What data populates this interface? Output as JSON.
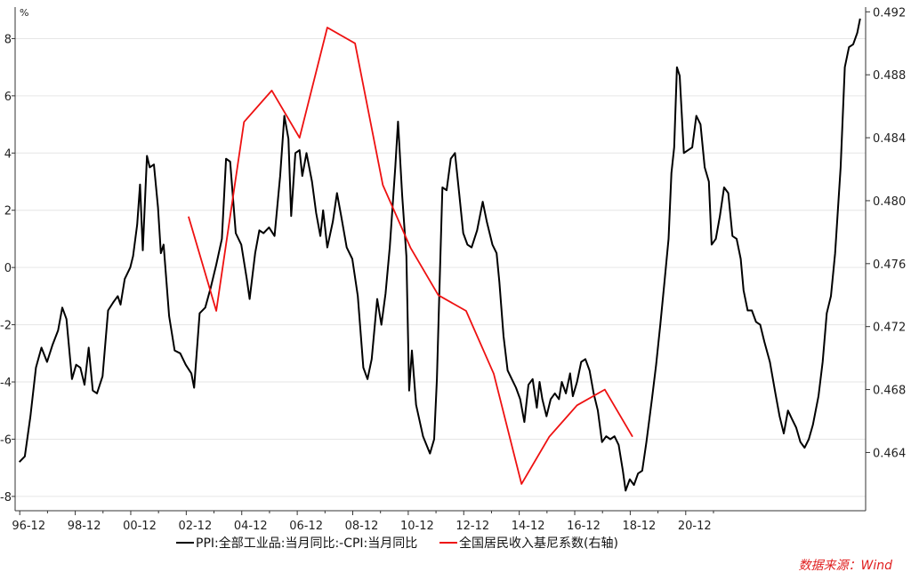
{
  "chart_data": {
    "type": "line",
    "left_axis_unit": "%",
    "x_ticks": [
      "96-12",
      "98-12",
      "00-12",
      "02-12",
      "04-12",
      "06-12",
      "08-12",
      "10-12",
      "12-12",
      "14-12",
      "16-12",
      "18-12",
      "20-12"
    ],
    "y_left": {
      "lim": [
        -8.5,
        9.1
      ],
      "ticks": [
        -8,
        -6,
        -4,
        -2,
        0,
        2,
        4,
        6,
        8
      ],
      "tick_labels": [
        "-8",
        "-6",
        "-4",
        "-2",
        "0",
        "2",
        "4",
        "6",
        "8"
      ]
    },
    "y_right": {
      "lim": [
        0.4603,
        0.4923
      ],
      "ticks": [
        0.464,
        0.468,
        0.472,
        0.476,
        0.48,
        0.484,
        0.488,
        0.492
      ],
      "tick_labels": [
        "0.464",
        "0.468",
        "0.472",
        "0.476",
        "0.480",
        "0.484",
        "0.488",
        "0.492"
      ]
    },
    "series": [
      {
        "name": "PPI:全部工业品:当月同比:-CPI:当月同比",
        "color": "#000000",
        "axis": "left",
        "points": [
          [
            1996.9,
            -6.8
          ],
          [
            1997.1,
            -6.6
          ],
          [
            1997.3,
            -5.2
          ],
          [
            1997.5,
            -3.5
          ],
          [
            1997.7,
            -2.8
          ],
          [
            1997.9,
            -3.3
          ],
          [
            1998.1,
            -2.7
          ],
          [
            1998.3,
            -2.2
          ],
          [
            1998.45,
            -1.4
          ],
          [
            1998.6,
            -1.8
          ],
          [
            1998.8,
            -3.9
          ],
          [
            1998.95,
            -3.4
          ],
          [
            1999.1,
            -3.5
          ],
          [
            1999.25,
            -4.1
          ],
          [
            1999.4,
            -2.8
          ],
          [
            1999.55,
            -4.3
          ],
          [
            1999.7,
            -4.4
          ],
          [
            1999.9,
            -3.8
          ],
          [
            2000.1,
            -1.5
          ],
          [
            2000.3,
            -1.2
          ],
          [
            2000.45,
            -1.0
          ],
          [
            2000.55,
            -1.3
          ],
          [
            2000.7,
            -0.4
          ],
          [
            2000.9,
            0.0
          ],
          [
            2001.0,
            0.4
          ],
          [
            2001.15,
            1.5
          ],
          [
            2001.25,
            2.9
          ],
          [
            2001.35,
            0.6
          ],
          [
            2001.5,
            3.9
          ],
          [
            2001.6,
            3.5
          ],
          [
            2001.75,
            3.6
          ],
          [
            2001.9,
            2.1
          ],
          [
            2002.0,
            0.5
          ],
          [
            2002.1,
            0.8
          ],
          [
            2002.3,
            -1.7
          ],
          [
            2002.5,
            -2.9
          ],
          [
            2002.7,
            -3.0
          ],
          [
            2002.9,
            -3.4
          ],
          [
            2003.1,
            -3.7
          ],
          [
            2003.2,
            -4.2
          ],
          [
            2003.4,
            -1.6
          ],
          [
            2003.6,
            -1.4
          ],
          [
            2003.8,
            -0.7
          ],
          [
            2004.0,
            0.1
          ],
          [
            2004.2,
            1.0
          ],
          [
            2004.35,
            3.8
          ],
          [
            2004.5,
            3.7
          ],
          [
            2004.7,
            1.2
          ],
          [
            2004.9,
            0.8
          ],
          [
            2005.1,
            -0.4
          ],
          [
            2005.2,
            -1.1
          ],
          [
            2005.4,
            0.5
          ],
          [
            2005.55,
            1.3
          ],
          [
            2005.7,
            1.2
          ],
          [
            2005.9,
            1.4
          ],
          [
            2006.1,
            1.1
          ],
          [
            2006.3,
            3.2
          ],
          [
            2006.45,
            5.3
          ],
          [
            2006.6,
            4.5
          ],
          [
            2006.7,
            1.8
          ],
          [
            2006.85,
            4.0
          ],
          [
            2007.0,
            4.1
          ],
          [
            2007.1,
            3.2
          ],
          [
            2007.25,
            4.0
          ],
          [
            2007.45,
            3.0
          ],
          [
            2007.6,
            1.9
          ],
          [
            2007.75,
            1.1
          ],
          [
            2007.85,
            2.0
          ],
          [
            2008.0,
            0.7
          ],
          [
            2008.2,
            1.6
          ],
          [
            2008.35,
            2.6
          ],
          [
            2008.5,
            1.8
          ],
          [
            2008.7,
            0.7
          ],
          [
            2008.9,
            0.3
          ],
          [
            2009.1,
            -1.0
          ],
          [
            2009.3,
            -3.5
          ],
          [
            2009.45,
            -3.9
          ],
          [
            2009.6,
            -3.2
          ],
          [
            2009.8,
            -1.1
          ],
          [
            2009.95,
            -2.0
          ],
          [
            2010.1,
            -0.9
          ],
          [
            2010.25,
            0.7
          ],
          [
            2010.45,
            3.5
          ],
          [
            2010.55,
            5.1
          ],
          [
            2010.7,
            2.5
          ],
          [
            2010.85,
            0.4
          ],
          [
            2010.95,
            -4.3
          ],
          [
            2011.05,
            -2.9
          ],
          [
            2011.2,
            -4.8
          ],
          [
            2011.45,
            -5.9
          ],
          [
            2011.7,
            -6.5
          ],
          [
            2011.85,
            -6.0
          ],
          [
            2011.95,
            -3.9
          ],
          [
            2012.05,
            -0.5
          ],
          [
            2012.15,
            2.8
          ],
          [
            2012.3,
            2.7
          ],
          [
            2012.45,
            3.8
          ],
          [
            2012.6,
            4.0
          ],
          [
            2012.75,
            2.6
          ],
          [
            2012.9,
            1.2
          ],
          [
            2013.05,
            0.8
          ],
          [
            2013.2,
            0.7
          ],
          [
            2013.4,
            1.3
          ],
          [
            2013.6,
            2.3
          ],
          [
            2013.75,
            1.6
          ],
          [
            2013.95,
            0.8
          ],
          [
            2014.1,
            0.5
          ],
          [
            2014.2,
            -0.5
          ],
          [
            2014.35,
            -2.4
          ],
          [
            2014.5,
            -3.6
          ],
          [
            2014.65,
            -3.9
          ],
          [
            2014.8,
            -4.2
          ],
          [
            2014.95,
            -4.6
          ],
          [
            2015.1,
            -5.4
          ],
          [
            2015.25,
            -4.1
          ],
          [
            2015.4,
            -3.9
          ],
          [
            2015.55,
            -4.9
          ],
          [
            2015.65,
            -4.0
          ],
          [
            2015.75,
            -4.6
          ],
          [
            2015.9,
            -5.2
          ],
          [
            2016.05,
            -4.6
          ],
          [
            2016.2,
            -4.4
          ],
          [
            2016.35,
            -4.6
          ],
          [
            2016.45,
            -4.0
          ],
          [
            2016.6,
            -4.4
          ],
          [
            2016.75,
            -3.7
          ],
          [
            2016.85,
            -4.5
          ],
          [
            2017.0,
            -4.0
          ],
          [
            2017.15,
            -3.3
          ],
          [
            2017.3,
            -3.2
          ],
          [
            2017.45,
            -3.6
          ],
          [
            2017.6,
            -4.4
          ],
          [
            2017.75,
            -5.0
          ],
          [
            2017.9,
            -6.1
          ],
          [
            2018.05,
            -5.9
          ],
          [
            2018.2,
            -6.0
          ],
          [
            2018.35,
            -5.9
          ],
          [
            2018.5,
            -6.2
          ],
          [
            2018.65,
            -7.1
          ],
          [
            2018.75,
            -7.8
          ],
          [
            2018.9,
            -7.4
          ],
          [
            2019.05,
            -7.6
          ],
          [
            2019.2,
            -7.2
          ],
          [
            2019.35,
            -7.1
          ],
          [
            2019.5,
            -6.1
          ],
          [
            2019.7,
            -4.6
          ],
          [
            2019.85,
            -3.4
          ],
          [
            2020.0,
            -2.0
          ],
          [
            2020.15,
            -0.5
          ],
          [
            2020.3,
            1.0
          ],
          [
            2020.4,
            3.3
          ],
          [
            2020.5,
            4.2
          ],
          [
            2020.6,
            7.0
          ],
          [
            2020.7,
            6.7
          ],
          [
            2020.85,
            4.0
          ],
          [
            2021.0,
            4.1
          ],
          [
            2021.15,
            4.2
          ],
          [
            2021.3,
            5.3
          ],
          [
            2021.45,
            5.0
          ],
          [
            2021.6,
            3.5
          ],
          [
            2021.75,
            3.0
          ],
          [
            2021.85,
            0.8
          ],
          [
            2022.0,
            1.0
          ],
          [
            2022.15,
            1.8
          ],
          [
            2022.3,
            2.8
          ],
          [
            2022.45,
            2.6
          ],
          [
            2022.6,
            1.1
          ],
          [
            2022.75,
            1.0
          ],
          [
            2022.9,
            0.3
          ],
          [
            2023.0,
            -0.8
          ],
          [
            2023.15,
            -1.5
          ],
          [
            2023.3,
            -1.5
          ],
          [
            2023.45,
            -1.9
          ],
          [
            2023.6,
            -2.0
          ],
          [
            2023.75,
            -2.6
          ],
          [
            2023.95,
            -3.3
          ],
          [
            2024.15,
            -4.4
          ],
          [
            2024.3,
            -5.2
          ],
          [
            2024.45,
            -5.8
          ],
          [
            2024.6,
            -5.0
          ],
          [
            2024.75,
            -5.3
          ],
          [
            2024.9,
            -5.6
          ],
          [
            2025.05,
            -6.1
          ],
          [
            2025.2,
            -6.3
          ],
          [
            2025.35,
            -6.0
          ],
          [
            2025.5,
            -5.5
          ],
          [
            2025.7,
            -4.5
          ],
          [
            2025.85,
            -3.3
          ],
          [
            2026.0,
            -1.6
          ],
          [
            2026.15,
            -1.0
          ],
          [
            2026.3,
            0.5
          ],
          [
            2026.5,
            3.5
          ],
          [
            2026.65,
            7.0
          ],
          [
            2026.8,
            7.7
          ],
          [
            2026.95,
            7.8
          ],
          [
            2027.1,
            8.2
          ],
          [
            2027.2,
            8.7
          ]
        ]
      },
      {
        "name": "全国居民收入基尼系数(右轴)",
        "color": "#ee1111",
        "axis": "right",
        "points": [
          [
            2003.0,
            0.479
          ],
          [
            2004.0,
            0.473
          ],
          [
            2005.0,
            0.485
          ],
          [
            2006.0,
            0.487
          ],
          [
            2007.0,
            0.484
          ],
          [
            2008.0,
            0.491
          ],
          [
            2009.0,
            0.49
          ],
          [
            2010.0,
            0.481
          ],
          [
            2011.0,
            0.477
          ],
          [
            2012.0,
            0.474
          ],
          [
            2013.0,
            0.473
          ],
          [
            2014.0,
            0.469
          ],
          [
            2015.0,
            0.462
          ],
          [
            2016.0,
            0.465
          ],
          [
            2017.0,
            0.467
          ],
          [
            2018.0,
            0.468
          ],
          [
            2019.0,
            0.465
          ]
        ]
      }
    ]
  },
  "legend": [
    {
      "label": "PPI:全部工业品:当月同比:-CPI:当月同比",
      "color": "#000000"
    },
    {
      "label": "全国居民收入基尼系数(右轴)",
      "color": "#ee1111"
    }
  ],
  "source": "数据来源：Wind"
}
